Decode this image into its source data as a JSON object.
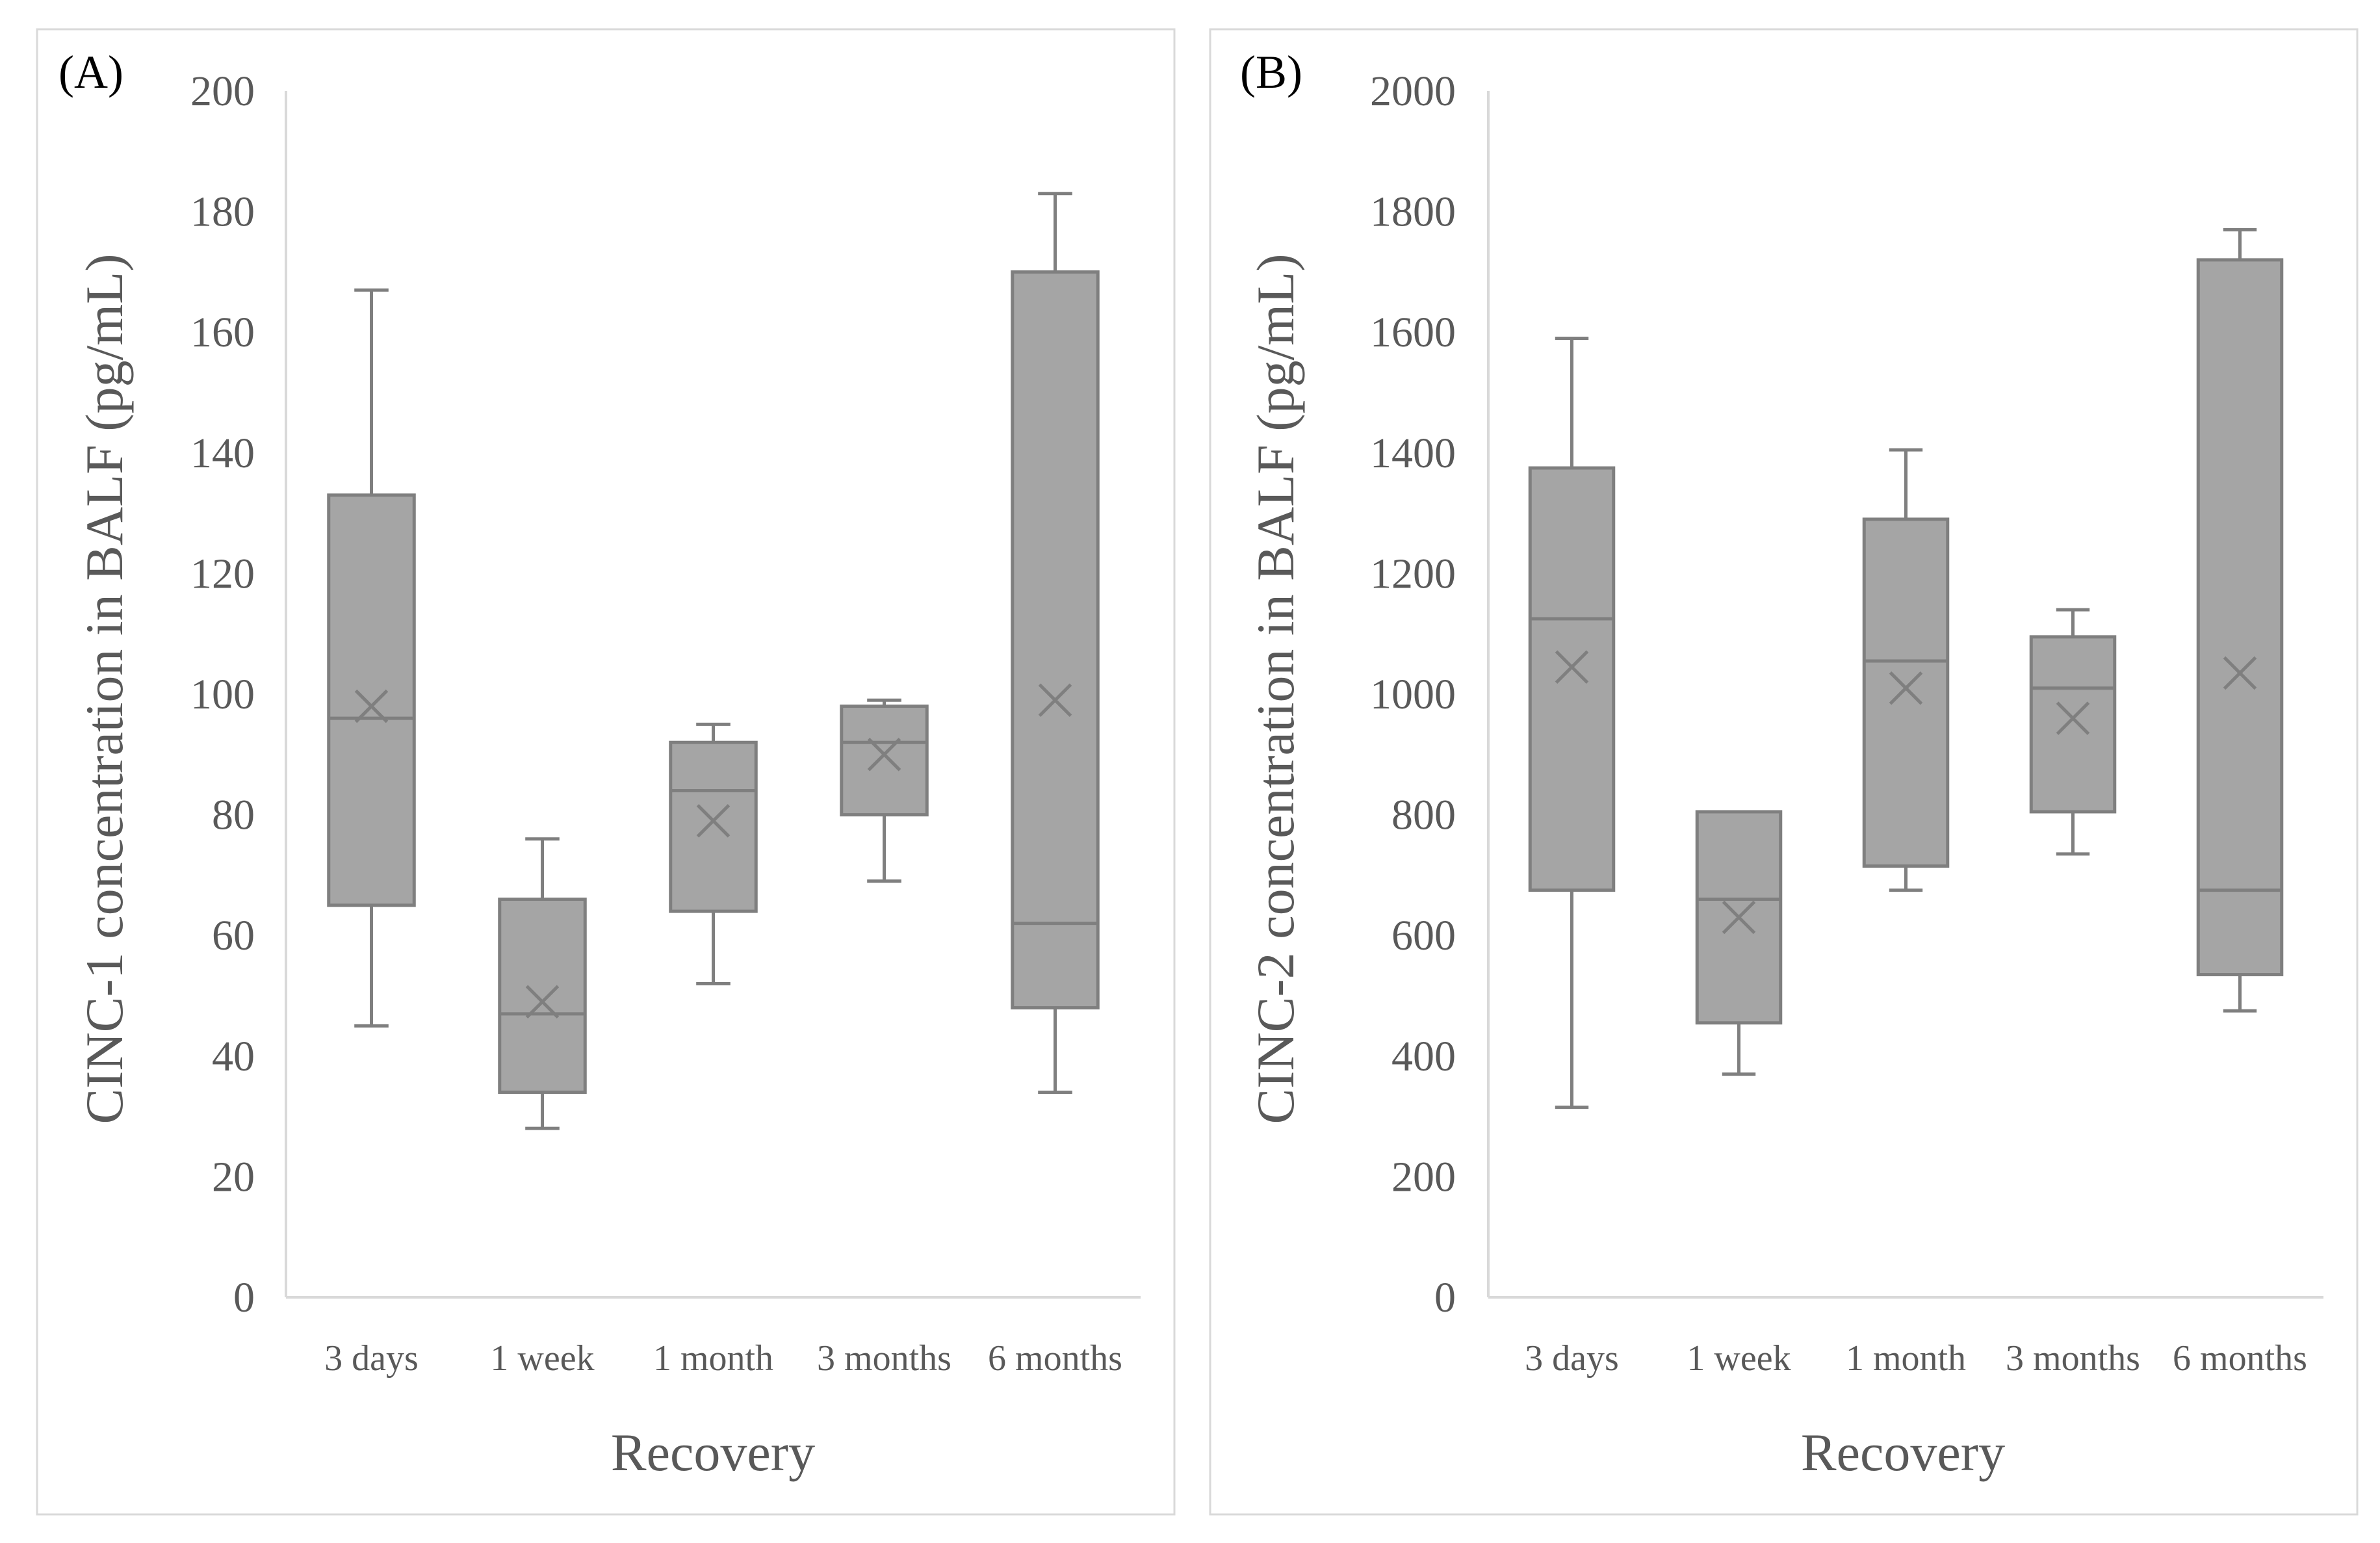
{
  "chart_data": [
    {
      "type": "box",
      "panel_label": "(A)",
      "ylabel": "CINC-1 concentration in BALF (pg/mL)",
      "xlabel": "Recovery",
      "ylim": [
        0,
        200
      ],
      "yticks": [
        0,
        20,
        40,
        60,
        80,
        100,
        120,
        140,
        160,
        180,
        200
      ],
      "categories": [
        "3 days",
        "1 week",
        "1 month",
        "3 months",
        "6 months"
      ],
      "boxes": [
        {
          "category": "3 days",
          "min": 45,
          "q1": 65,
          "median": 96,
          "q3": 133,
          "max": 167,
          "mean": 98
        },
        {
          "category": "1 week",
          "min": 28,
          "q1": 34,
          "median": 47,
          "q3": 66,
          "max": 76,
          "mean": 49
        },
        {
          "category": "1 month",
          "min": 52,
          "q1": 64,
          "median": 84,
          "q3": 92,
          "max": 95,
          "mean": 79
        },
        {
          "category": "3 months",
          "min": 69,
          "q1": 80,
          "median": 92,
          "q3": 98,
          "max": 99,
          "mean": 90
        },
        {
          "category": "6 months",
          "min": 34,
          "q1": 48,
          "median": 62,
          "q3": 170,
          "max": 183,
          "mean": 99
        }
      ]
    },
    {
      "type": "box",
      "panel_label": "(B)",
      "ylabel": "CINC-2 concentration in BALF (pg/mL)",
      "xlabel": "Recovery",
      "ylim": [
        0,
        2000
      ],
      "yticks": [
        0,
        200,
        400,
        600,
        800,
        1000,
        1200,
        1400,
        1600,
        1800,
        2000
      ],
      "categories": [
        "3 days",
        "1 week",
        "1 month",
        "3 months",
        "6 months"
      ],
      "boxes": [
        {
          "category": "3 days",
          "min": 315,
          "q1": 675,
          "median": 1125,
          "q3": 1375,
          "max": 1590,
          "mean": 1045
        },
        {
          "category": "1 week",
          "min": 370,
          "q1": 455,
          "median": 660,
          "q3": 805,
          "max": 805,
          "mean": 630
        },
        {
          "category": "1 month",
          "min": 675,
          "q1": 715,
          "median": 1055,
          "q3": 1290,
          "max": 1405,
          "mean": 1010
        },
        {
          "category": "3 months",
          "min": 735,
          "q1": 805,
          "median": 1010,
          "q3": 1095,
          "max": 1140,
          "mean": 960
        },
        {
          "category": "6 months",
          "min": 475,
          "q1": 535,
          "median": 675,
          "q3": 1720,
          "max": 1770,
          "mean": 1035
        }
      ]
    }
  ]
}
